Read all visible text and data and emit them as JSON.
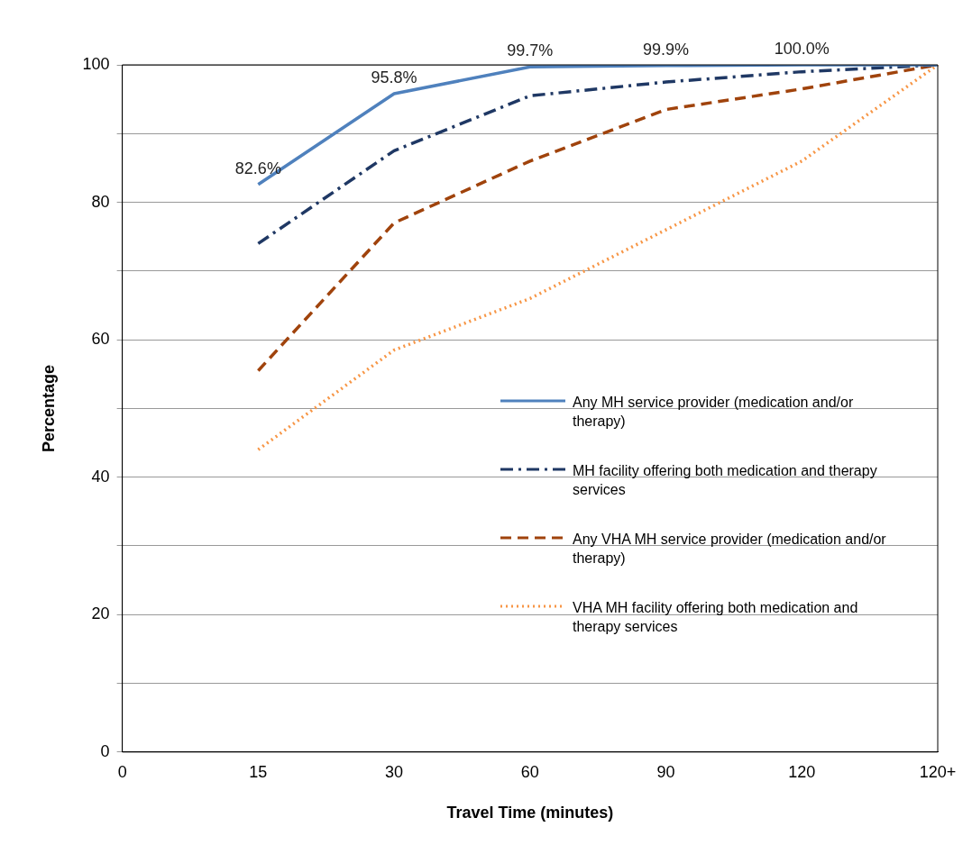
{
  "chart_data": {
    "type": "line",
    "xlabel": "Travel Time (minutes)",
    "ylabel": "Percentage",
    "categories": [
      "0",
      "15",
      "30",
      "60",
      "90",
      "120",
      "120+"
    ],
    "series": [
      {
        "name": "Any MH service provider (medication and/or therapy)",
        "color": "#4f81bd",
        "line_style": "solid",
        "values": [
          null,
          82.6,
          95.8,
          99.7,
          99.9,
          100.0,
          100
        ],
        "value_labels": [
          null,
          "82.6%",
          "95.8%",
          "99.7%",
          "99.9%",
          "100.0%",
          null
        ]
      },
      {
        "name": "MH facility offering both medication and therapy services",
        "color": "#1f3864",
        "line_style": "dashdot",
        "values": [
          null,
          74,
          87.5,
          95.5,
          97.5,
          99,
          100
        ]
      },
      {
        "name": "Any VHA  MH service provider (medication and/or therapy)",
        "color": "#a0430c",
        "line_style": "dashed",
        "values": [
          null,
          55.5,
          77,
          86,
          93.5,
          96.5,
          100
        ]
      },
      {
        "name": "VHA MH facility offering both medication and therapy services",
        "color": "#f79646",
        "line_style": "dotted",
        "values": [
          null,
          44,
          58.5,
          66,
          76,
          86,
          100
        ]
      }
    ],
    "ylim": [
      0,
      100
    ],
    "yticks": [
      0,
      {
        "value": 10,
        "label": null
      },
      20,
      {
        "value": 30,
        "label": null
      },
      40,
      {
        "value": 50,
        "label": null
      },
      60,
      {
        "value": 70,
        "label": null
      },
      80,
      {
        "value": 90,
        "label": null
      },
      100
    ],
    "grid": "y",
    "legend": "right",
    "marker": "none"
  }
}
